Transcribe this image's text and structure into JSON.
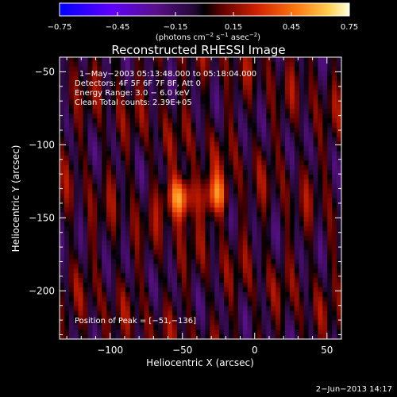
{
  "chart_data": {
    "type": "heatmap",
    "title": "Reconstructed RHESSI Image",
    "xlabel": "Heliocentric X (arcsec)",
    "ylabel": "Heliocentric Y (arcsec)",
    "xlim": [
      -135,
      60
    ],
    "ylim": [
      -233,
      -40
    ],
    "x_ticks": [
      -100,
      -50,
      0,
      50
    ],
    "x_tick_labels": [
      "−100",
      "−50",
      "0",
      "50"
    ],
    "y_ticks": [
      -50,
      -100,
      -150,
      -200
    ],
    "y_tick_labels": [
      "−50",
      "−100",
      "−150",
      "−200"
    ],
    "colorbar": {
      "min": -0.75,
      "max": 0.75,
      "ticks": [
        -0.75,
        -0.45,
        -0.15,
        0.15,
        0.45,
        0.75
      ],
      "tick_labels": [
        "−0.75",
        "−0.45",
        "−0.15",
        "0.15",
        "0.45",
        "0.75"
      ],
      "unit_base": "(photons cm",
      "unit_exp1": "−2",
      "unit_mid": " s",
      "unit_exp2": "−1",
      "unit_mid2": " asec",
      "unit_exp3": "−2",
      "unit_end": ")"
    },
    "annotations": {
      "time_range": "1−May−2003 05:13:48.000  to  05:18:04.000",
      "detectors": "Detectors: 4F 5F 6F 7F 8F, Att 0",
      "energy": "Energy Range: 3.0 − 6.0 keV",
      "clean": "Clean     Total counts: 2.39E+05",
      "peak": "Position of Peak = [−51,−136]"
    },
    "peak": {
      "x": -51,
      "y": -136,
      "value": 0.75
    },
    "secondary_peak": {
      "x": -27,
      "y": -135,
      "value": 0.62
    },
    "footer_date": "2−Jun−2013 14:17"
  },
  "colors": {
    "background": "#000000",
    "foreground": "#ffffff",
    "colormap": [
      "#0000ff",
      "#6a00ff",
      "#4a0a6a",
      "#000000",
      "#8a0000",
      "#e03000",
      "#ff9020",
      "#ffff80",
      "#ffffff"
    ]
  }
}
